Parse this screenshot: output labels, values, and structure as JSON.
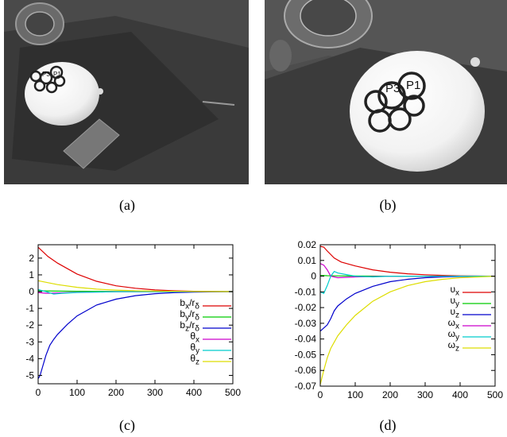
{
  "photos": {
    "a": {
      "marker_labels": [
        "P3",
        "P1"
      ]
    },
    "b": {
      "marker_labels": [
        "P3",
        "P1"
      ]
    }
  },
  "captions": {
    "a": "(a)",
    "b": "(b)",
    "c": "(c)",
    "d": "(d)"
  },
  "chart_data": [
    {
      "type": "line",
      "title": "",
      "xlabel": "",
      "ylabel": "",
      "xlim": [
        0,
        500
      ],
      "ylim": [
        -5.5,
        2.8
      ],
      "xticks": [
        "0",
        "100",
        "200",
        "300",
        "400",
        "500"
      ],
      "yticks": [
        "2",
        "1",
        "0",
        "-1",
        "-2",
        "-3",
        "-4",
        "-5"
      ],
      "legend_position": "right",
      "grid": false,
      "series": [
        {
          "legend_html": "b<sub>x</sub>/r<sub>δ</sub>",
          "color": "#dd0000",
          "x": [
            0,
            25,
            50,
            100,
            150,
            200,
            250,
            300,
            350,
            400,
            500
          ],
          "y": [
            2.65,
            2.1,
            1.7,
            1.05,
            0.62,
            0.35,
            0.2,
            0.1,
            0.05,
            0.02,
            0.0
          ]
        },
        {
          "legend_html": "b<sub>y</sub>/r<sub>δ</sub>",
          "color": "#00cc00",
          "x": [
            0,
            50,
            100,
            200,
            300,
            500
          ],
          "y": [
            0.05,
            0.03,
            0.02,
            0.01,
            0.0,
            0.0
          ]
        },
        {
          "legend_html": "b<sub>z</sub>/r<sub>δ</sub>",
          "color": "#0000cc",
          "x": [
            0,
            5,
            10,
            20,
            30,
            40,
            50,
            75,
            100,
            150,
            200,
            250,
            300,
            350,
            400,
            500
          ],
          "y": [
            -5.2,
            -5.0,
            -4.6,
            -3.8,
            -3.2,
            -2.85,
            -2.55,
            -1.95,
            -1.45,
            -0.8,
            -0.45,
            -0.24,
            -0.12,
            -0.06,
            -0.03,
            0.0
          ]
        },
        {
          "legend_html": "θ<sub>x</sub>",
          "color": "#cc00cc",
          "x": [
            0,
            20,
            50,
            100,
            200,
            500
          ],
          "y": [
            -0.05,
            -0.1,
            -0.08,
            -0.04,
            -0.01,
            0.0
          ]
        },
        {
          "legend_html": "θ<sub>y</sub>",
          "color": "#00cccc",
          "x": [
            0,
            20,
            40,
            60,
            100,
            200,
            500
          ],
          "y": [
            0.12,
            0.0,
            -0.15,
            -0.1,
            -0.05,
            -0.01,
            0.0
          ]
        },
        {
          "legend_html": "θ<sub>z</sub>",
          "color": "#dddd00",
          "x": [
            0,
            50,
            100,
            150,
            200,
            250,
            300,
            400,
            500
          ],
          "y": [
            0.65,
            0.42,
            0.26,
            0.15,
            0.09,
            0.05,
            0.03,
            0.01,
            0.0
          ]
        }
      ]
    },
    {
      "type": "line",
      "title": "",
      "xlabel": "",
      "ylabel": "",
      "xlim": [
        0,
        500
      ],
      "ylim": [
        -0.07,
        0.02
      ],
      "xticks": [
        "0",
        "100",
        "200",
        "300",
        "400",
        "500"
      ],
      "yticks": [
        "0.02",
        "0.01",
        "0",
        "-0.01",
        "-0.02",
        "-0.03",
        "-0.04",
        "-0.05",
        "-0.06",
        "-0.07"
      ],
      "legend_position": "right",
      "grid": false,
      "series": [
        {
          "legend_html": "υ<sub>x</sub>",
          "color": "#dd0000",
          "x": [
            0,
            10,
            20,
            40,
            60,
            100,
            150,
            200,
            250,
            300,
            350,
            400,
            500
          ],
          "y": [
            0.019,
            0.0185,
            0.016,
            0.0115,
            0.009,
            0.0065,
            0.004,
            0.0025,
            0.0015,
            0.0009,
            0.0005,
            0.0002,
            0.0
          ]
        },
        {
          "legend_html": "υ<sub>y</sub>",
          "color": "#00cc00",
          "x": [
            0,
            20,
            50,
            100,
            200,
            500
          ],
          "y": [
            0.0005,
            0.0003,
            0.0002,
            0.0001,
            0.0,
            0.0
          ]
        },
        {
          "legend_html": "υ<sub>z</sub>",
          "color": "#0000cc",
          "x": [
            0,
            10,
            20,
            30,
            40,
            50,
            75,
            100,
            150,
            200,
            250,
            300,
            350,
            400,
            500
          ],
          "y": [
            -0.035,
            -0.033,
            -0.031,
            -0.027,
            -0.022,
            -0.019,
            -0.0145,
            -0.011,
            -0.0065,
            -0.0035,
            -0.002,
            -0.001,
            -0.0005,
            -0.0002,
            0.0
          ]
        },
        {
          "legend_html": "ω<sub>x</sub>",
          "color": "#cc00cc",
          "x": [
            0,
            10,
            20,
            30,
            50,
            100,
            200,
            500
          ],
          "y": [
            0.008,
            0.007,
            0.004,
            0.0,
            -0.001,
            -0.0005,
            0.0,
            0.0
          ]
        },
        {
          "legend_html": "ω<sub>y</sub>",
          "color": "#00cccc",
          "x": [
            0,
            10,
            20,
            30,
            40,
            50,
            75,
            100,
            150,
            200,
            500
          ],
          "y": [
            -0.01,
            -0.011,
            -0.006,
            0.0,
            0.003,
            0.002,
            0.001,
            0.0,
            -0.0005,
            0.0,
            0.0
          ]
        },
        {
          "legend_html": "ω<sub>z</sub>",
          "color": "#dddd00",
          "x": [
            0,
            10,
            20,
            30,
            50,
            75,
            100,
            150,
            200,
            250,
            300,
            350,
            400,
            500
          ],
          "y": [
            -0.069,
            -0.06,
            -0.052,
            -0.046,
            -0.038,
            -0.031,
            -0.025,
            -0.016,
            -0.01,
            -0.006,
            -0.0035,
            -0.002,
            -0.001,
            0.0
          ]
        }
      ]
    }
  ]
}
